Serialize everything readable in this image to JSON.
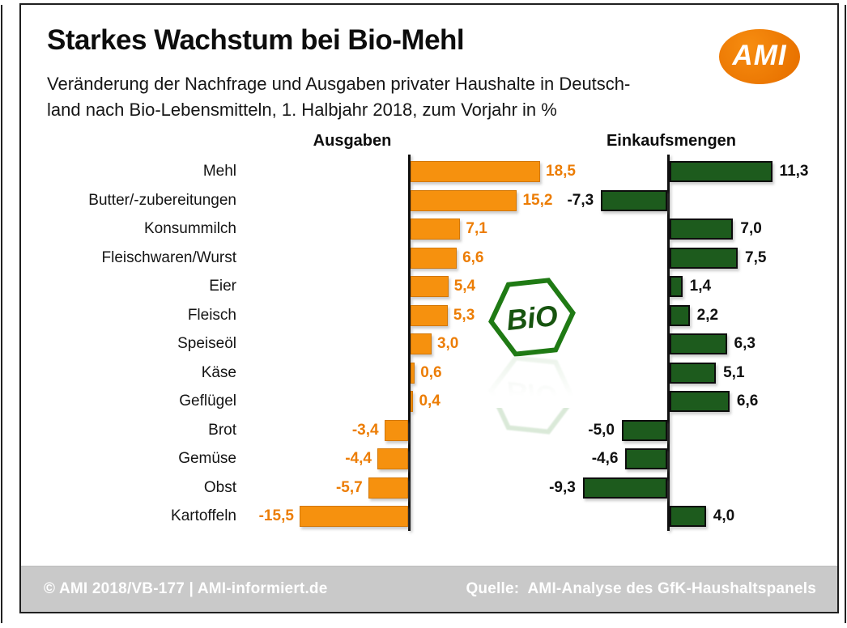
{
  "header": {
    "title": "Starkes Wachstum bei Bio-Mehl",
    "subtitle_line1": "Veränderung der Nachfrage und Ausgaben privater Haushalte in Deutsch-",
    "subtitle_line2": "land nach Bio-Lebensmitteln, 1. Halbjahr 2018, zum Vorjahr in %",
    "ami_logo_text": "AMI"
  },
  "chart_data": {
    "type": "bar",
    "orientation": "horizontal",
    "unit": "%",
    "decimal_separator": ",",
    "categories": [
      "Mehl",
      "Butter/-zubereitungen",
      "Konsummilch",
      "Fleischwaren/Wurst",
      "Eier",
      "Fleisch",
      "Speiseöl",
      "Käse",
      "Geflügel",
      "Brot",
      "Gemüse",
      "Obst",
      "Kartoffeln"
    ],
    "series": [
      {
        "name": "Ausgaben",
        "values": [
          18.5,
          15.2,
          7.1,
          6.6,
          5.4,
          5.3,
          3.0,
          0.6,
          0.4,
          -3.4,
          -4.4,
          -5.7,
          -15.5
        ],
        "bar_color": "#F6910E",
        "bar_border_color": "#D27707",
        "label_color": "#EC7D05",
        "axis_range": [
          -18,
          20
        ]
      },
      {
        "name": "Einkaufsmengen",
        "values": [
          11.3,
          -7.3,
          7.0,
          7.5,
          1.4,
          2.2,
          6.3,
          5.1,
          6.6,
          -5.0,
          -4.6,
          -9.3,
          4.0
        ],
        "bar_color": "#1D5B1D",
        "bar_border_color": "#0D0D0D",
        "label_color": "#101010",
        "axis_range": [
          -11,
          13
        ]
      }
    ],
    "legend_position": "column-headers",
    "grid": false
  },
  "bio_badge": {
    "text": "BiO"
  },
  "footer": {
    "left_text": "© AMI 2018/VB-177 | AMI-informiert.de",
    "source_text": "Quelle:  AMI-Analyse des GfK-Haushaltspanels"
  },
  "colors": {
    "bar_orange": "#F6910E",
    "bar_green": "#1D5B1D",
    "value_label_orange": "#EC7D05",
    "value_label_black": "#101010",
    "logo_orange": "#EF7D00",
    "footer_gray": "#C9C9C9",
    "bio_green": "#1F7A14"
  }
}
